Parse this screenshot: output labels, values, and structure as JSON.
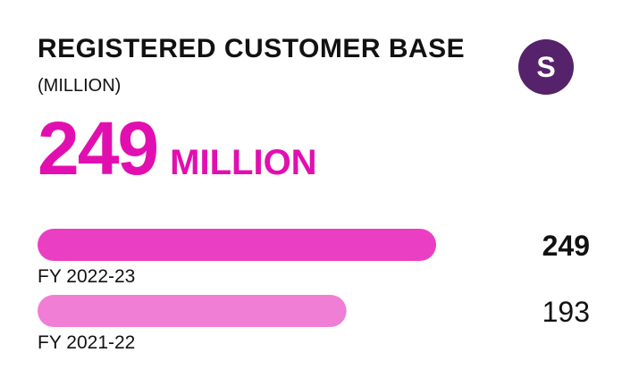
{
  "header": {
    "title": "REGISTERED CUSTOMER BASE",
    "subtitle": "(MILLION)",
    "badge_letter": "S"
  },
  "headline": {
    "value": "249",
    "unit": "MILLION"
  },
  "colors": {
    "accent": "#E20FB0",
    "bar_primary": "#EA3FC2",
    "bar_secondary": "#F07ED5",
    "badge": "#56226B",
    "text": "#111111"
  },
  "chart_data": {
    "type": "bar",
    "orientation": "horizontal",
    "categories": [
      "FY 2022-23",
      "FY 2021-22"
    ],
    "values": [
      249,
      193
    ],
    "value_labels": [
      "249",
      "193"
    ],
    "xlim": [
      0,
      249
    ],
    "grid": false
  }
}
